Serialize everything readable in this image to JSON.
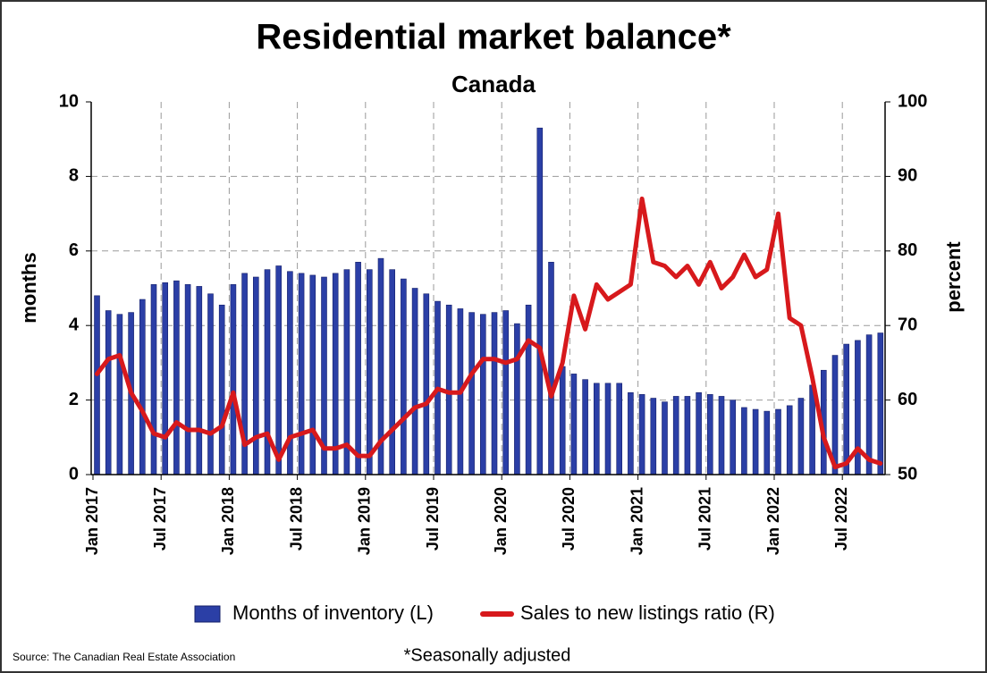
{
  "chart_data": {
    "type": "bar-line",
    "title": "Residential market balance*",
    "subtitle": "Canada",
    "y_label": "months",
    "y2_label": "percent",
    "source": "Source: The Canadian Real Estate Association",
    "footnote": "*Seasonally adjusted",
    "categories": [
      "Jan 2017",
      null,
      null,
      null,
      null,
      null,
      "Jul 2017",
      null,
      null,
      null,
      null,
      null,
      "Jan 2018",
      null,
      null,
      null,
      null,
      null,
      "Jul 2018",
      null,
      null,
      null,
      null,
      null,
      "Jan 2019",
      null,
      null,
      null,
      null,
      null,
      "Jul 2019",
      null,
      null,
      null,
      null,
      null,
      "Jan 2020",
      null,
      null,
      null,
      null,
      null,
      "Jul 2020",
      null,
      null,
      null,
      null,
      null,
      "Jan 2021",
      null,
      null,
      null,
      null,
      null,
      "Jul 2021",
      null,
      null,
      null,
      null,
      null,
      "Jan 2022",
      null,
      null,
      null,
      null,
      null,
      "Jul 2022",
      null,
      null,
      null
    ],
    "series": [
      {
        "name": "Months of inventory (L)",
        "type": "bar",
        "color": "#2b3fa6",
        "axis": "y",
        "values": [
          4.8,
          4.4,
          4.3,
          4.35,
          4.7,
          5.1,
          5.15,
          5.2,
          5.1,
          5.05,
          4.85,
          4.55,
          5.1,
          5.4,
          5.3,
          5.5,
          5.6,
          5.45,
          5.4,
          5.35,
          5.3,
          5.4,
          5.5,
          5.7,
          5.5,
          5.8,
          5.5,
          5.25,
          5.0,
          4.85,
          4.65,
          4.55,
          4.45,
          4.35,
          4.3,
          4.35,
          4.4,
          4.05,
          4.55,
          9.3,
          5.7,
          2.9,
          2.7,
          2.55,
          2.45,
          2.45,
          2.45,
          2.2,
          2.15,
          2.05,
          1.95,
          2.1,
          2.1,
          2.2,
          2.15,
          2.1,
          2.0,
          1.8,
          1.75,
          1.7,
          1.75,
          1.85,
          2.05,
          2.4,
          2.8,
          3.2,
          3.5,
          3.6,
          3.75,
          3.8
        ]
      },
      {
        "name": "Sales to new listings ratio (R)",
        "type": "line",
        "color": "#d7191c",
        "axis": "y2",
        "values": [
          63.5,
          65.5,
          66,
          61,
          58.5,
          55.5,
          55,
          57,
          56,
          56,
          55.5,
          56.5,
          61,
          54,
          55,
          55.5,
          52,
          55,
          55.5,
          56,
          53.5,
          53.5,
          54,
          52.5,
          52.5,
          54.5,
          56,
          57.5,
          59,
          59.5,
          61.5,
          61,
          61,
          63.5,
          65.5,
          65.5,
          65,
          65.5,
          68,
          67,
          60.5,
          65,
          74,
          69.5,
          75.5,
          73.5,
          74.5,
          75.5,
          87,
          78.5,
          78,
          76.5,
          78,
          75.5,
          78.5,
          75,
          76.5,
          79.5,
          76.5,
          77.5,
          85,
          71,
          70,
          63,
          55,
          51,
          51.5,
          53.5,
          52,
          51.5
        ]
      }
    ],
    "ylim": [
      0,
      10
    ],
    "yticks": [
      0,
      2,
      4,
      6,
      8,
      10
    ],
    "y2lim": [
      50,
      100
    ],
    "y2ticks": [
      50,
      60,
      70,
      80,
      90,
      100
    ],
    "grid": true,
    "legend": "bottom"
  }
}
